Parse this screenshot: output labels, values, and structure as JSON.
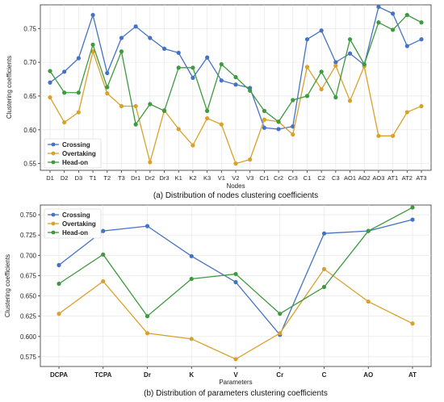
{
  "colors": {
    "Crossing": "#4472c4",
    "Overtaking": "#d9a12a",
    "Head-on": "#3e9a3e"
  },
  "chart_data": [
    {
      "type": "line",
      "caption": "(a) Distribution of nodes clustering coefficients",
      "xlabel": "Nodes",
      "ylabel": "Clustering coefficients",
      "ylim": [
        0.54,
        0.785
      ],
      "yticks": [
        "0.55",
        "0.60",
        "0.65",
        "0.70",
        "0.75"
      ],
      "grid": true,
      "legend_position": "bottom-left",
      "categories": [
        "D1",
        "D2",
        "D3",
        "T1",
        "T2",
        "T3",
        "Dr1",
        "Dr2",
        "Dr3",
        "K1",
        "K2",
        "K3",
        "V1",
        "V2",
        "V3",
        "Cr1",
        "Cr2",
        "Cr3",
        "C1",
        "C2",
        "C3",
        "AO1",
        "AO2",
        "AO3",
        "AT1",
        "AT2",
        "AT3"
      ],
      "series": [
        {
          "name": "Crossing",
          "values": [
            0.67,
            0.686,
            0.706,
            0.77,
            0.684,
            0.736,
            0.753,
            0.736,
            0.72,
            0.714,
            0.677,
            0.707,
            0.673,
            0.667,
            0.662,
            0.603,
            0.601,
            0.605,
            0.734,
            0.747,
            0.7,
            0.713,
            0.696,
            0.782,
            0.772,
            0.724,
            0.734
          ]
        },
        {
          "name": "Overtaking",
          "values": [
            0.648,
            0.611,
            0.626,
            0.716,
            0.654,
            0.635,
            0.635,
            0.552,
            0.629,
            0.601,
            0.577,
            0.617,
            0.608,
            0.55,
            0.556,
            0.615,
            0.612,
            0.593,
            0.693,
            0.66,
            0.695,
            0.643,
            0.694,
            0.591,
            0.591,
            0.626,
            0.635
          ]
        },
        {
          "name": "Head-on",
          "values": [
            0.687,
            0.655,
            0.655,
            0.726,
            0.663,
            0.716,
            0.608,
            0.638,
            0.628,
            0.692,
            0.692,
            0.628,
            0.697,
            0.678,
            0.658,
            0.628,
            0.612,
            0.644,
            0.65,
            0.686,
            0.648,
            0.734,
            0.697,
            0.759,
            0.748,
            0.77,
            0.759
          ]
        }
      ]
    },
    {
      "type": "line",
      "caption": "(b) Distribution of parameters clustering coefficients",
      "xlabel": "Parameters",
      "ylabel": "Clustering coefficients",
      "ylim": [
        0.563,
        0.762
      ],
      "yticks": [
        "0.575",
        "0.600",
        "0.625",
        "0.650",
        "0.675",
        "0.700",
        "0.725",
        "0.750"
      ],
      "grid": true,
      "legend_position": "top-left",
      "categories": [
        "DCPA",
        "TCPA",
        "Dr",
        "K",
        "V",
        "Cr",
        "C",
        "AO",
        "AT"
      ],
      "series": [
        {
          "name": "Crossing",
          "values": [
            0.688,
            0.73,
            0.736,
            0.699,
            0.667,
            0.602,
            0.727,
            0.73,
            0.744
          ]
        },
        {
          "name": "Overtaking",
          "values": [
            0.628,
            0.668,
            0.604,
            0.597,
            0.572,
            0.604,
            0.683,
            0.643,
            0.616
          ]
        },
        {
          "name": "Head-on",
          "values": [
            0.665,
            0.701,
            0.625,
            0.671,
            0.677,
            0.628,
            0.661,
            0.73,
            0.759
          ]
        }
      ]
    }
  ]
}
